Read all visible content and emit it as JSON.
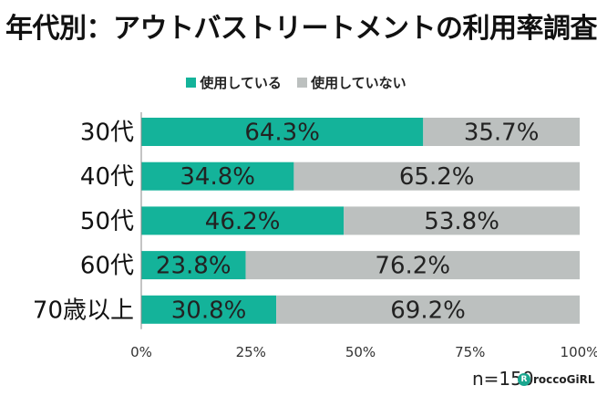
{
  "title": "年代別：アウトバストリートメントの利用率調査",
  "footer": {
    "sample": "n=150",
    "brand": "roccoGiRL"
  },
  "chart_data": {
    "type": "bar",
    "orientation": "horizontal",
    "stacked": true,
    "categories": [
      "30代",
      "40代",
      "50代",
      "60代",
      "70歳以上"
    ],
    "series": [
      {
        "name": "使用している",
        "color": "#14b39a",
        "values": [
          64.3,
          34.8,
          46.2,
          23.8,
          30.8
        ]
      },
      {
        "name": "使用していない",
        "color": "#bcc0bf",
        "values": [
          35.7,
          65.2,
          53.8,
          76.2,
          69.2
        ]
      }
    ],
    "value_labels": [
      [
        "64.3%",
        "34.8%",
        "46.2%",
        "23.8%",
        "30.8%"
      ],
      [
        "35.7%",
        "65.2%",
        "53.8%",
        "76.2%",
        "69.2%"
      ]
    ],
    "xlim": [
      0,
      100
    ],
    "xticks": [
      0,
      25,
      50,
      75,
      100
    ],
    "xtick_labels": [
      "0%",
      "25%",
      "50%",
      "75%",
      "100%"
    ],
    "legend_position": "top-center",
    "grid": false
  }
}
